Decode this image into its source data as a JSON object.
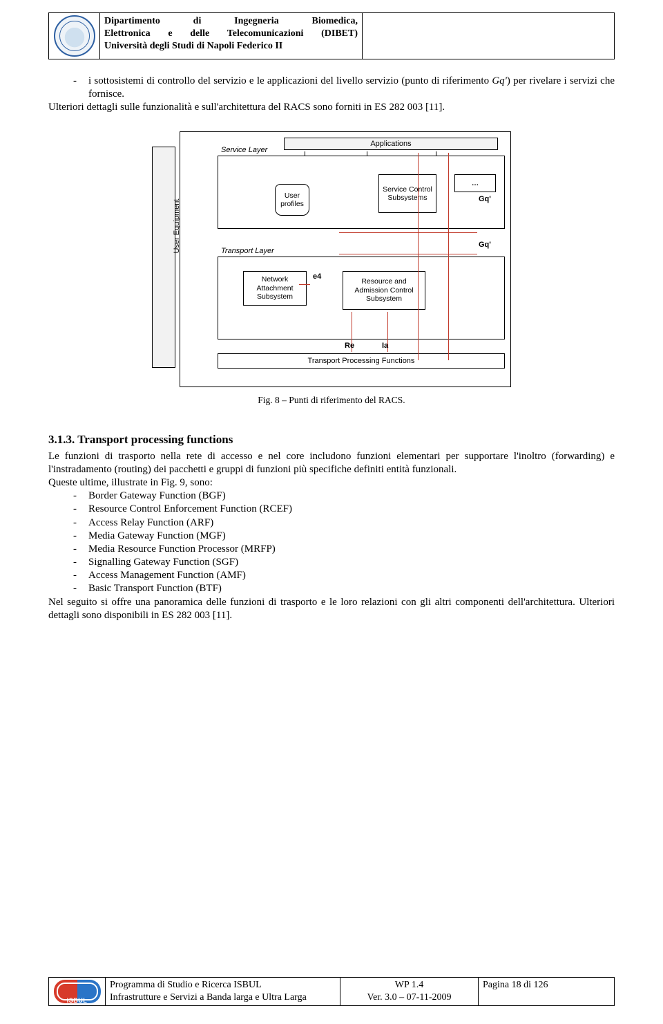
{
  "header": {
    "line1": "Dipartimento di Ingegneria Biomedica,",
    "line2": "Elettronica e delle Telecomunicazioni (DIBET)",
    "line3": "Università degli Studi di Napoli Federico II"
  },
  "intro": {
    "bullet1_pre": "i sottosistemi di controllo del servizio e le applicazioni del livello servizio (punto di riferimento ",
    "bullet1_em": "Gq'",
    "bullet1_post": ") per rivelare i servizi che fornisce.",
    "line2": "Ulteriori dettagli sulle funzionalità e sull'architettura del RACS sono forniti in ES 282 003 [11]."
  },
  "figure": {
    "caption": "Fig. 8 – Punti di riferimento del RACS.",
    "applications": "Applications",
    "service_layer": "Service Layer",
    "transport_layer": "Transport Layer",
    "user_equipment": "User Equipment",
    "user_profiles": "User profiles",
    "scs": "Service Control Subsystems",
    "dots": "…",
    "nas": "Network Attachment Subsystem",
    "racs": "Resource and Admission Control Subsystem",
    "tpf": "Transport Processing Functions",
    "iface_gq_top": "Gq'",
    "iface_gq_mid": "Gq'",
    "iface_e4": "e4",
    "iface_re": "Re",
    "iface_ia": "Ia",
    "colors": {
      "reference_line": "#c23a2b",
      "box_border": "#000000",
      "layer_fill": "#ffffff",
      "ue_fill": "#f2f2f2"
    }
  },
  "section": {
    "number": "3.1.3.",
    "title": "Transport processing functions",
    "para1": "Le funzioni di trasporto nella rete di accesso e nel core includono funzioni elementari per supportare l'inoltro (forwarding) e l'instradamento (routing) dei pacchetti e gruppi di funzioni più specifiche definiti entità funzionali.",
    "para2": "Queste ultime, illustrate in Fig. 9, sono:",
    "bullets": [
      "Border Gateway Function (BGF)",
      "Resource Control Enforcement Function (RCEF)",
      "Access Relay Function (ARF)",
      "Media Gateway Function (MGF)",
      "Media Resource Function Processor (MRFP)",
      "Signalling Gateway Function (SGF)",
      "Access Management Function (AMF)",
      "Basic Transport Function (BTF)"
    ],
    "para3": "Nel seguito si offre una panoramica delle funzioni di trasporto e le loro relazioni con gli altri componenti dell'architettura. Ulteriori dettagli sono disponibili in ES 282 003 [11]."
  },
  "footer": {
    "prog1": "Programma di Studio e Ricerca ISBUL",
    "prog2": "Infrastrutture e Servizi a Banda larga e Ultra Larga",
    "wp": "WP 1.4",
    "ver": "Ver. 3.0 – 07-11-2009",
    "page": "Pagina 18 di 126",
    "logo_text": "ISBUL"
  }
}
